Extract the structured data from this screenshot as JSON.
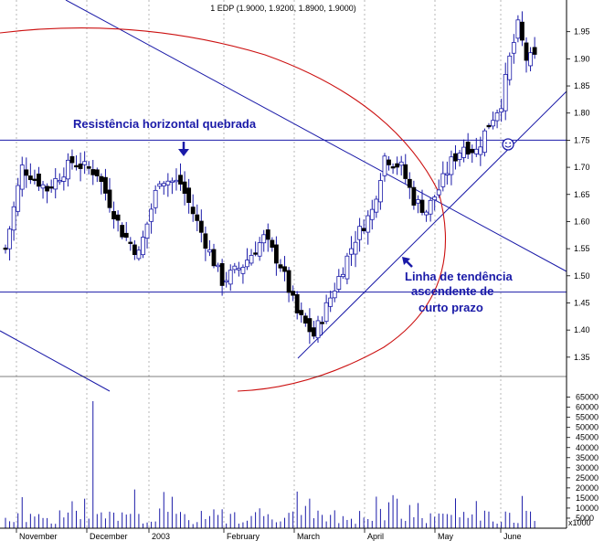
{
  "chart_data": {
    "type": "candlestick",
    "title": "1 EDP (1.9000, 1.9200, 1.8900, 1.9000)",
    "price_axis": {
      "ticks": [
        "1.95",
        "1.90",
        "1.85",
        "1.80",
        "1.75",
        "1.70",
        "1.65",
        "1.60",
        "1.55",
        "1.50",
        "1.45",
        "1.40",
        "1.35"
      ],
      "ylim": [
        1.3,
        2.0
      ]
    },
    "volume_axis": {
      "ticks": [
        "65000",
        "60000",
        "55000",
        "50000",
        "45000",
        "40000",
        "35000",
        "30000",
        "25000",
        "20000",
        "15000",
        "10000",
        "5000",
        "x1000"
      ],
      "ylim": [
        0,
        68000
      ]
    },
    "months": [
      "November",
      "December",
      "2003",
      "February",
      "March",
      "April",
      "May",
      "June"
    ],
    "close_keypoints": [
      {
        "bar": 0,
        "close": 1.55
      },
      {
        "bar": 4,
        "close": 1.7
      },
      {
        "bar": 10,
        "close": 1.66
      },
      {
        "bar": 16,
        "close": 1.71
      },
      {
        "bar": 22,
        "close": 1.69
      },
      {
        "bar": 28,
        "close": 1.58
      },
      {
        "bar": 32,
        "close": 1.54
      },
      {
        "bar": 37,
        "close": 1.68
      },
      {
        "bar": 42,
        "close": 1.67
      },
      {
        "bar": 47,
        "close": 1.58
      },
      {
        "bar": 52,
        "close": 1.49
      },
      {
        "bar": 57,
        "close": 1.52
      },
      {
        "bar": 62,
        "close": 1.57
      },
      {
        "bar": 66,
        "close": 1.52
      },
      {
        "bar": 70,
        "close": 1.43
      },
      {
        "bar": 74,
        "close": 1.39
      },
      {
        "bar": 78,
        "close": 1.46
      },
      {
        "bar": 84,
        "close": 1.57
      },
      {
        "bar": 88,
        "close": 1.62
      },
      {
        "bar": 91,
        "close": 1.72
      },
      {
        "bar": 95,
        "close": 1.7
      },
      {
        "bar": 98,
        "close": 1.64
      },
      {
        "bar": 101,
        "close": 1.62
      },
      {
        "bar": 104,
        "close": 1.66
      },
      {
        "bar": 107,
        "close": 1.71
      },
      {
        "bar": 110,
        "close": 1.74
      },
      {
        "bar": 113,
        "close": 1.73
      },
      {
        "bar": 116,
        "close": 1.78
      },
      {
        "bar": 119,
        "close": 1.82
      },
      {
        "bar": 121,
        "close": 1.9
      },
      {
        "bar": 123,
        "close": 1.96
      },
      {
        "bar": 125,
        "close": 1.9
      },
      {
        "bar": 127,
        "close": 1.9
      }
    ],
    "volume_notes": [
      {
        "bar": 21,
        "volume": 63000
      }
    ],
    "annotations": [
      "Resistência horizontal quebrada",
      "Linha de tendência",
      "ascendente de",
      "curto prazo"
    ],
    "horizontal_levels": [
      1.75,
      1.47
    ],
    "colors": {
      "candle_up": "#ffffff",
      "candle_down": "#000000",
      "candle_outline": "#1a1aa8",
      "trend_line": "#1a1aa8",
      "ellipse": "#cc1111",
      "annotation_text": "#1a1aa8",
      "grid": "#888888"
    },
    "grid": "vertical dashed"
  }
}
